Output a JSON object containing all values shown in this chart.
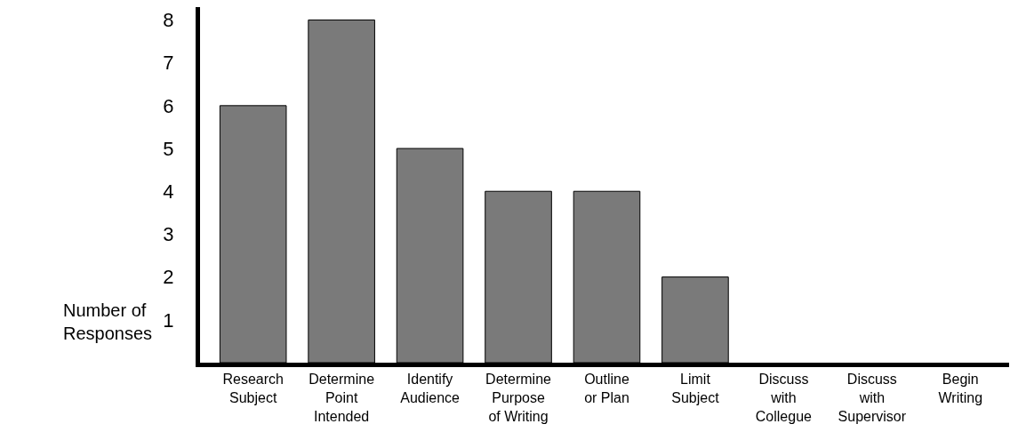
{
  "chart_data": {
    "type": "bar",
    "categories": [
      "Research\nSubject",
      "Determine\nPoint\nIntended",
      "Identify\nAudience",
      "Determine\nPurpose\nof Writing",
      "Outline\nor Plan",
      "Limit\nSubject",
      "Discuss\nwith\nCollegue",
      "Discuss\nwith\nSupervisor",
      "Begin\nWriting"
    ],
    "values": [
      6,
      8,
      5,
      4,
      4,
      2,
      0,
      0,
      0
    ],
    "color": "#7a7a7a",
    "ylabel": "Number of\nResponses",
    "ylim": [
      0,
      8.3
    ],
    "yticks": [
      1,
      2,
      3,
      4,
      5,
      6,
      7,
      8
    ],
    "grid": false
  }
}
